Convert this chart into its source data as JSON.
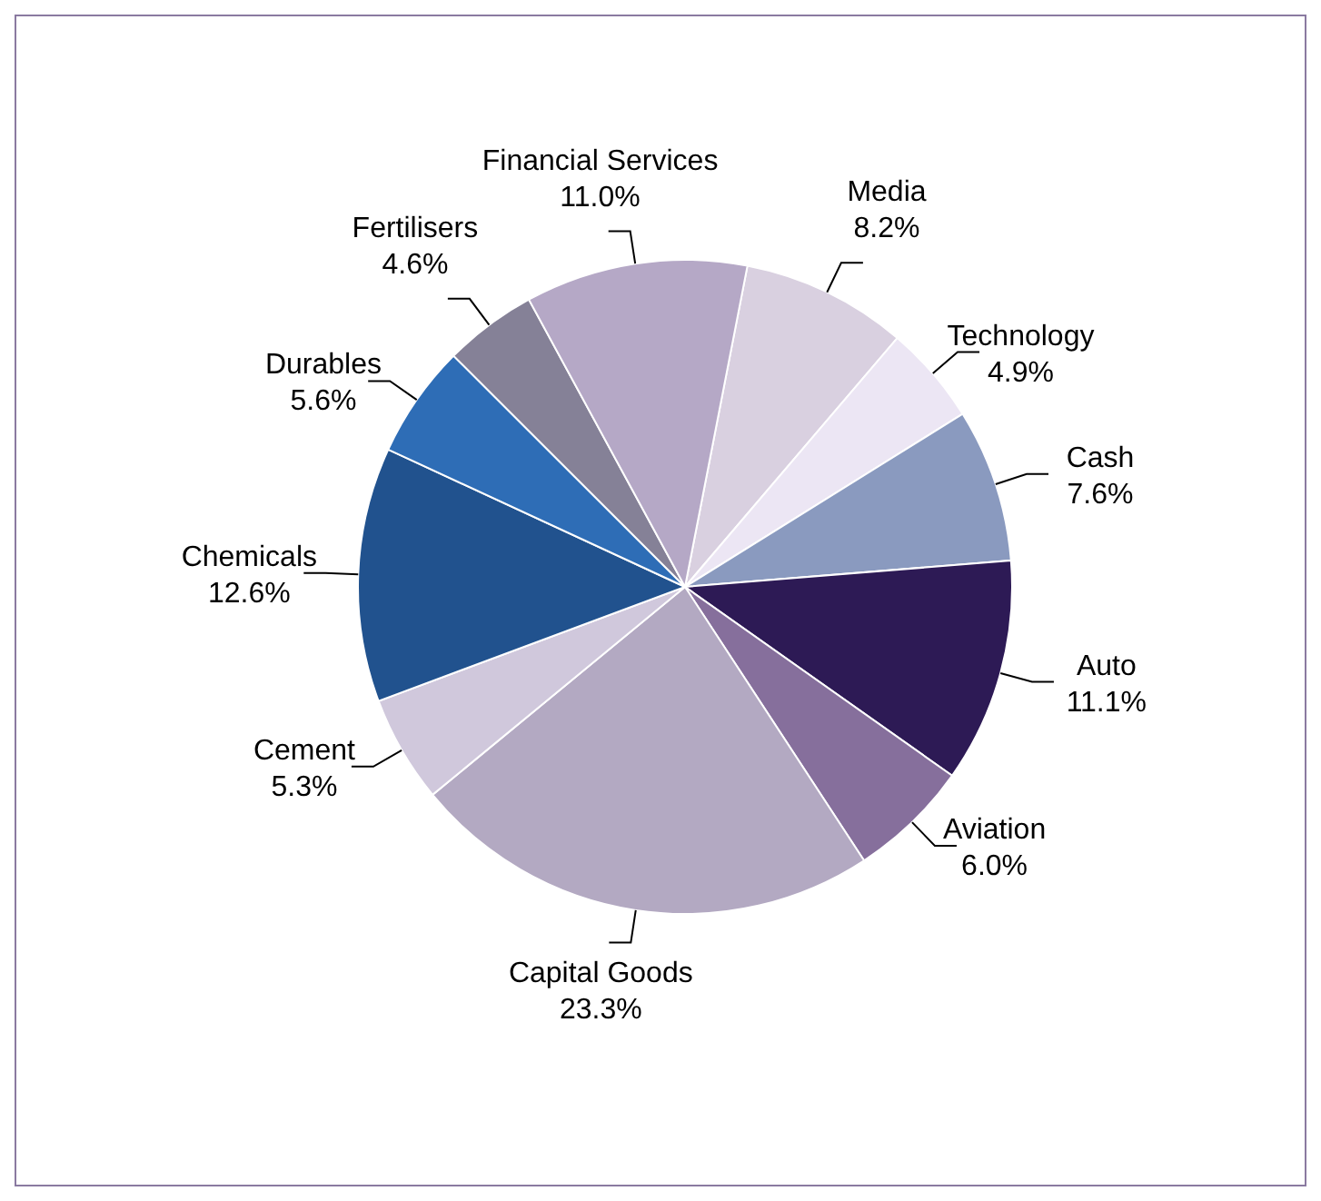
{
  "chart_data": {
    "type": "pie",
    "categories": [
      "Media",
      "Technology",
      "Cash",
      "Auto",
      "Aviation",
      "Capital Goods",
      "Cement",
      "Chemicals",
      "Durables",
      "Fertilisers",
      "Financial Services"
    ],
    "values": [
      8.2,
      4.9,
      7.6,
      11.1,
      6.0,
      23.3,
      5.3,
      12.6,
      5.6,
      4.6,
      11.0
    ],
    "value_labels": [
      "8.2%",
      "4.9%",
      "7.6%",
      "11.1%",
      "6.0%",
      "23.3%",
      "5.3%",
      "12.6%",
      "5.6%",
      "4.6%",
      "11.0%"
    ],
    "colors": [
      "#d9d0e0",
      "#ece6f4",
      "#8a9abf",
      "#2d1a55",
      "#866f9c",
      "#b3a9c2",
      "#d0c8dc",
      "#21528e",
      "#2e6db6",
      "#858197",
      "#b5a8c6"
    ],
    "legend": false
  }
}
